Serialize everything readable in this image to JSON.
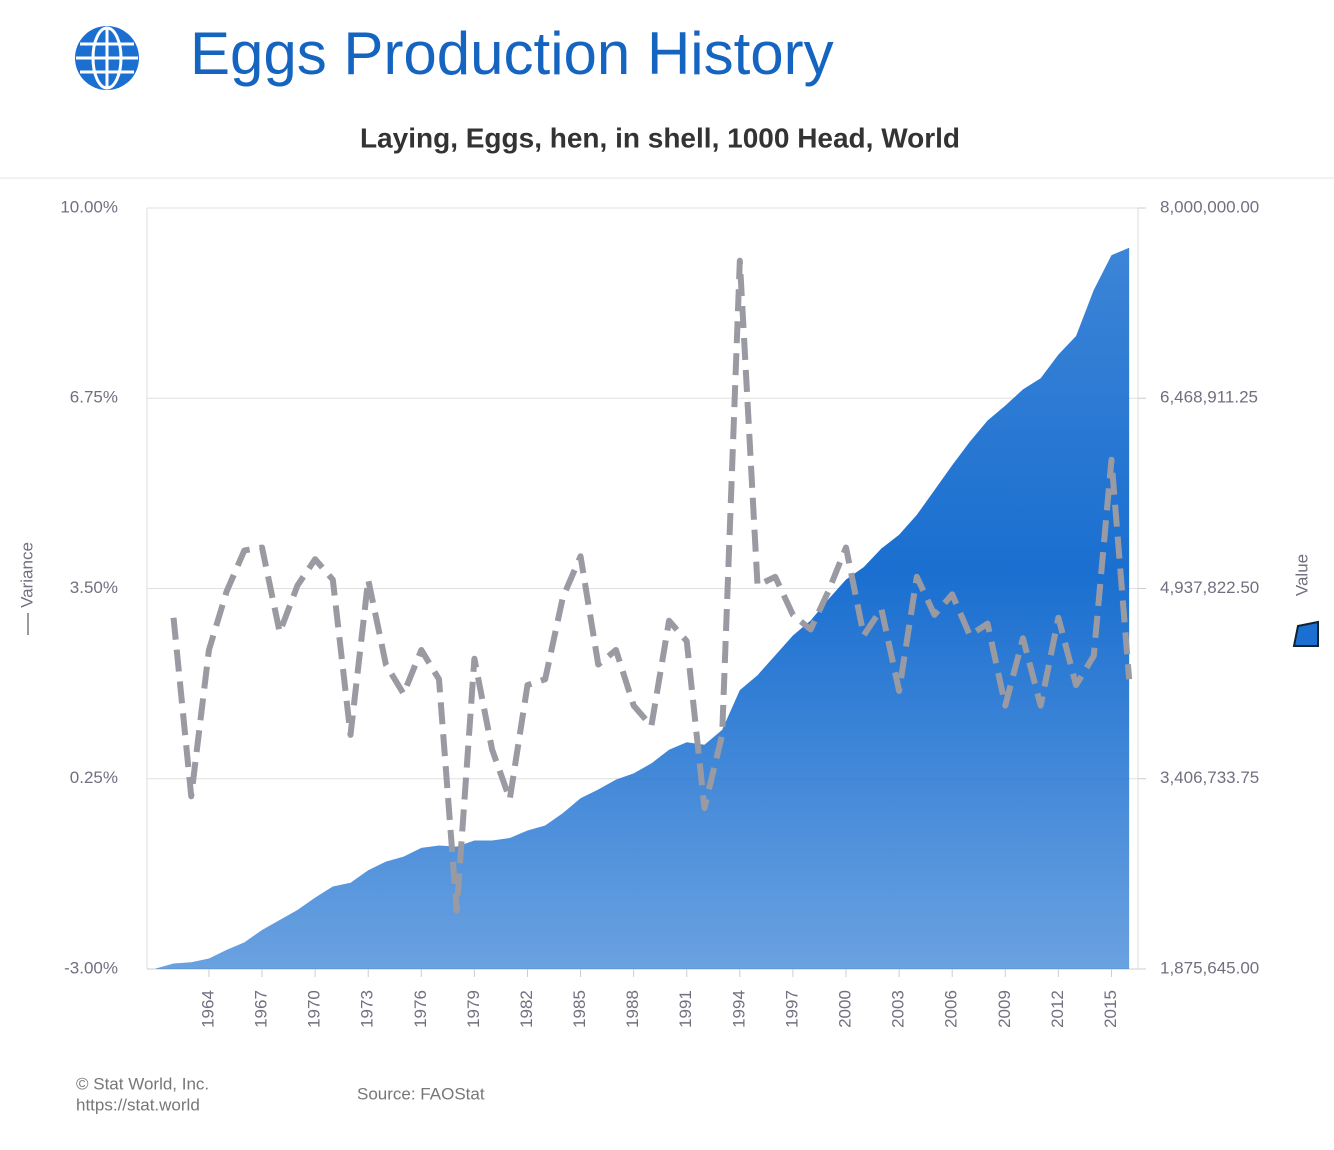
{
  "header": {
    "title": "Eggs Production History"
  },
  "chart_data": {
    "type": "combo",
    "subtitle": "Laying, Eggs, hen, in shell, 1000 Head, World",
    "x": [
      1961,
      1962,
      1963,
      1964,
      1965,
      1966,
      1967,
      1968,
      1969,
      1970,
      1971,
      1972,
      1973,
      1974,
      1975,
      1976,
      1977,
      1978,
      1979,
      1980,
      1981,
      1982,
      1983,
      1984,
      1985,
      1986,
      1987,
      1988,
      1989,
      1990,
      1991,
      1992,
      1993,
      1994,
      1995,
      1996,
      1997,
      1998,
      1999,
      2000,
      2001,
      2002,
      2003,
      2004,
      2005,
      2006,
      2007,
      2008,
      2009,
      2010,
      2011,
      2012,
      2013,
      2014,
      2015,
      2016
    ],
    "xlim": [
      1960.5,
      2016.5
    ],
    "xticks": [
      1964,
      1967,
      1970,
      1973,
      1976,
      1979,
      1982,
      1985,
      1988,
      1991,
      1994,
      1997,
      2000,
      2003,
      2006,
      2009,
      2012,
      2015
    ],
    "ylim": [
      -3,
      10
    ],
    "yticks": [
      {
        "value": -3,
        "label": "-3.00%"
      },
      {
        "value": 0.25,
        "label": "0.25%"
      },
      {
        "value": 3.5,
        "label": "3.50%"
      },
      {
        "value": 6.75,
        "label": "6.75%"
      },
      {
        "value": 10,
        "label": "10.00%"
      }
    ],
    "y2lim": [
      1875645,
      8000000
    ],
    "y2ticks": [
      {
        "value": 1875645,
        "label": "1,875,645.00"
      },
      {
        "value": 3406733.75,
        "label": "3,406,733.75"
      },
      {
        "value": 4937822.5,
        "label": "4,937,822.50"
      },
      {
        "value": 6468911.25,
        "label": "6,468,911.25"
      },
      {
        "value": 8000000,
        "label": "8,000,000.00"
      }
    ],
    "grid": true,
    "series": [
      {
        "name": "Value",
        "type": "area",
        "axis": "y2",
        "color": "#1a6fd0",
        "values": [
          1880000,
          1920000,
          1930000,
          1960000,
          2030000,
          2090000,
          2190000,
          2270000,
          2350000,
          2450000,
          2540000,
          2570000,
          2670000,
          2740000,
          2780000,
          2850000,
          2870000,
          2860000,
          2910000,
          2910000,
          2930000,
          2990000,
          3030000,
          3130000,
          3250000,
          3320000,
          3400000,
          3450000,
          3530000,
          3640000,
          3700000,
          3680000,
          3800000,
          4120000,
          4240000,
          4400000,
          4560000,
          4680000,
          4850000,
          5010000,
          5110000,
          5260000,
          5370000,
          5530000,
          5730000,
          5930000,
          6120000,
          6290000,
          6410000,
          6540000,
          6630000,
          6820000,
          6970000,
          7340000,
          7620000,
          7680000
        ]
      },
      {
        "name": "Variance",
        "type": "line",
        "axis": "y",
        "color": "#9a9aa2",
        "values": [
          null,
          3.0,
          -0.05,
          2.45,
          3.45,
          4.15,
          4.2,
          2.75,
          3.55,
          4.0,
          3.65,
          1.0,
          3.65,
          2.2,
          1.7,
          2.45,
          1.95,
          -2.0,
          2.3,
          0.75,
          -0.1,
          1.85,
          1.95,
          3.35,
          4.05,
          2.2,
          2.45,
          1.5,
          1.15,
          2.95,
          2.6,
          -0.25,
          1.0,
          9.1,
          3.55,
          3.7,
          3.05,
          2.8,
          3.45,
          4.2,
          2.7,
          3.15,
          1.75,
          3.7,
          3.05,
          3.4,
          2.7,
          2.9,
          1.5,
          2.65,
          1.5,
          3.0,
          1.85,
          2.35,
          5.7,
          1.95
        ]
      }
    ]
  },
  "footer": {
    "copyright": "© Stat World, Inc.",
    "url": "https://stat.world",
    "source": "Source: FAOStat"
  }
}
